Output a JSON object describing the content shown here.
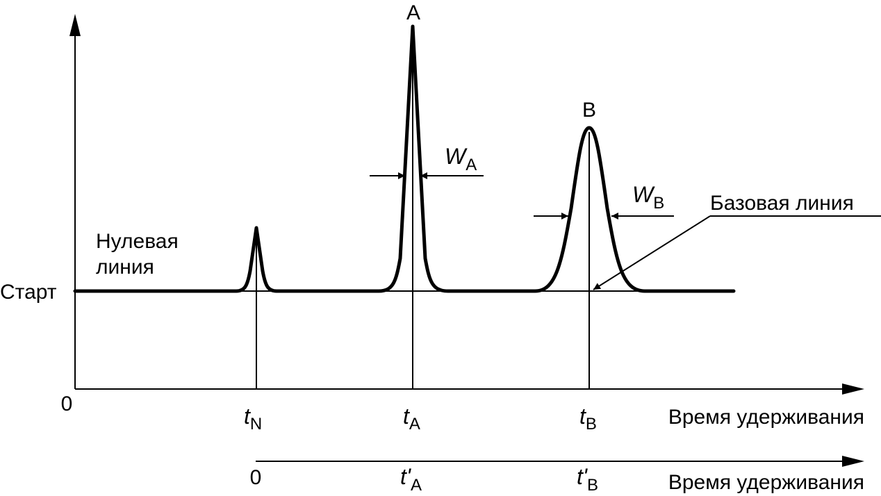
{
  "labels": {
    "peak_a": "A",
    "peak_b": "B",
    "start": "Старт",
    "null_line_1": "Нулевая",
    "null_line_2": "линия",
    "baseline": "Базовая линия",
    "origin_main": "0",
    "origin_adjusted": "0",
    "axis_main": "Время удерживания",
    "axis_adjusted": "Время удерживания"
  },
  "symbols": {
    "t_main": "t",
    "t_adjusted": "t'",
    "w": "W",
    "sub_n": "N",
    "sub_a": "A",
    "sub_b": "B"
  }
}
